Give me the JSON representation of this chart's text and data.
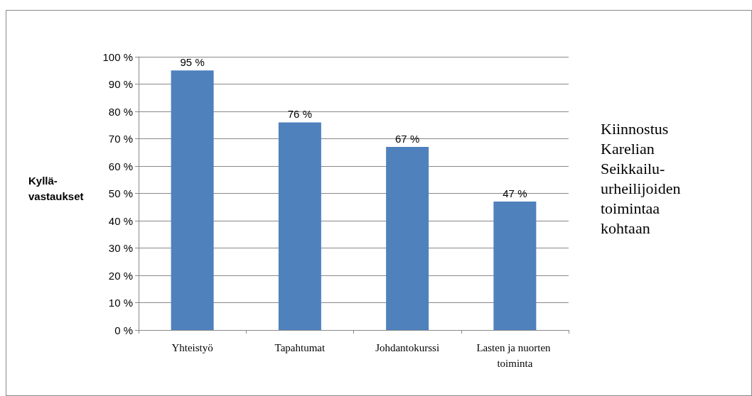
{
  "chart_data": {
    "type": "bar",
    "title": "Kiinnostus Karelian Seikkailu-urheilijoiden toimintaa kohtaan",
    "ylabel": "Kyllä-vastaukset",
    "categories": [
      "Yhteistyö",
      "Tapahtumat",
      "Johdantokurssi",
      "Lasten ja nuorten toiminta"
    ],
    "values": [
      95,
      76,
      67,
      47
    ],
    "color": "#4f81bd",
    "value_labels": [
      "95 %",
      "76 %",
      "67 %",
      "47 %"
    ],
    "ylim": [
      0,
      100
    ],
    "yticks": [
      {
        "value": 0,
        "label": "0 %"
      },
      {
        "value": 10,
        "label": "10 %"
      },
      {
        "value": 20,
        "label": "20 %"
      },
      {
        "value": 30,
        "label": "30 %"
      },
      {
        "value": 40,
        "label": "40 %"
      },
      {
        "value": 50,
        "label": "50 %"
      },
      {
        "value": 60,
        "label": "60 %"
      },
      {
        "value": 70,
        "label": "70 %"
      },
      {
        "value": 80,
        "label": "80 %"
      },
      {
        "value": 90,
        "label": "90 %"
      },
      {
        "value": 100,
        "label": "100 %"
      }
    ],
    "grid": "y"
  }
}
